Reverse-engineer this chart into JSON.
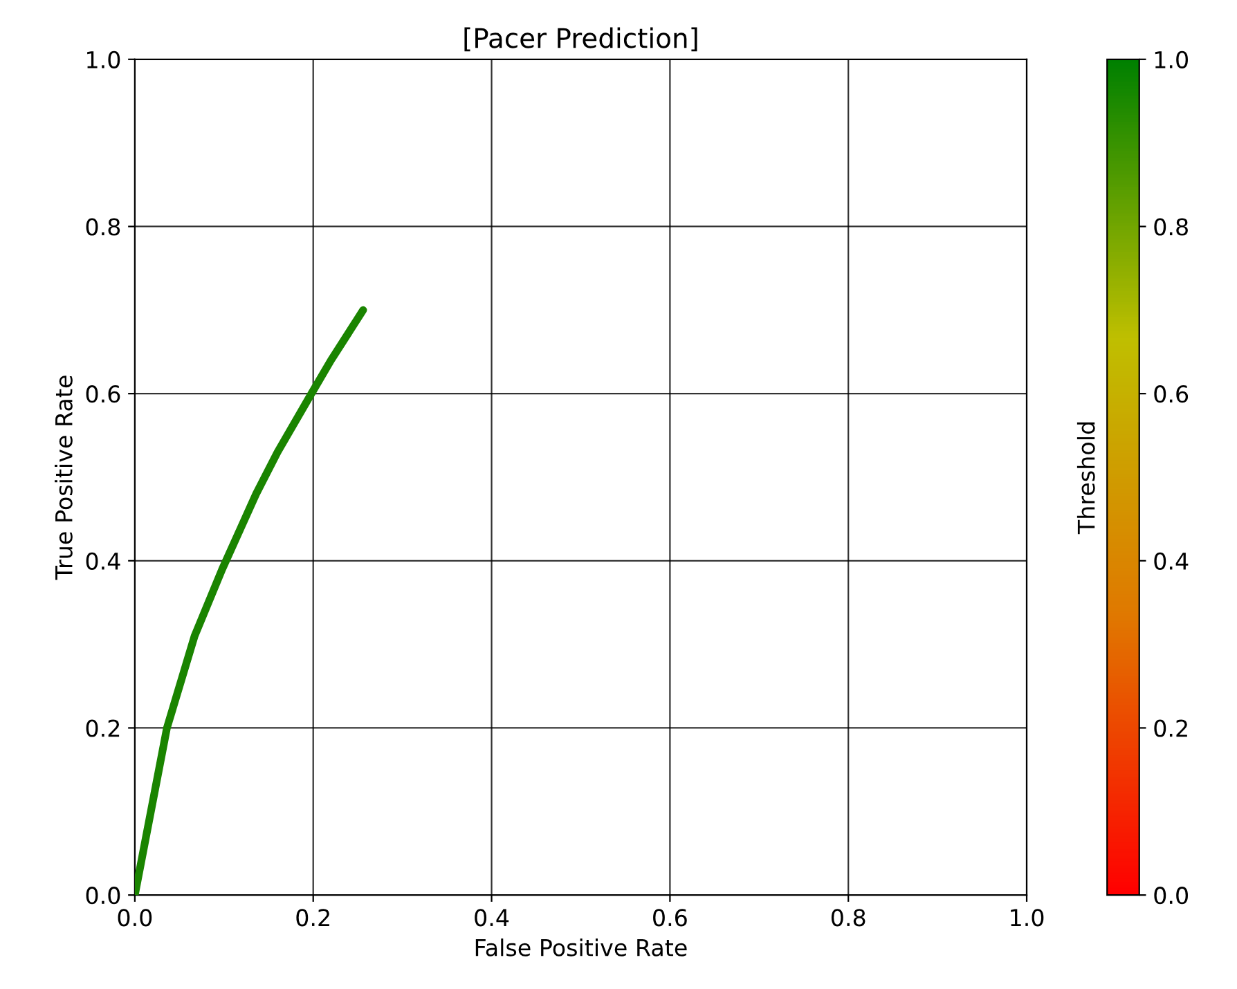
{
  "chart_data": {
    "type": "line",
    "title": "[Pacer Prediction]",
    "xlabel": "False Positive Rate",
    "ylabel": "True Positive Rate",
    "clabel": "Threshold",
    "series": [
      {
        "color": "#1a8400",
        "x": [
          0,
          0.036,
          0.067,
          0.098,
          0.136,
          0.16,
          0.198,
          0.22,
          0.256
        ],
        "values": [
          0,
          0.2,
          0.31,
          0.39,
          0.48,
          0.53,
          0.6,
          0.64,
          0.7
        ]
      }
    ],
    "xlim": [
      0,
      1
    ],
    "ylim": [
      0,
      1
    ],
    "xticks": [
      {
        "value": 0,
        "label": "0.0"
      },
      0.2,
      0.4,
      0.6,
      0.8,
      {
        "value": 1,
        "label": "1.0"
      }
    ],
    "yticks": [
      {
        "value": 0,
        "label": "0.0"
      },
      0.2,
      0.4,
      0.6,
      0.8,
      {
        "value": 1,
        "label": "1.0"
      }
    ],
    "clim": [
      0,
      1
    ],
    "cticks": [
      {
        "value": 0,
        "label": "0.0"
      },
      0.2,
      0.4,
      0.6,
      0.8,
      {
        "value": 1,
        "label": "1.0"
      }
    ],
    "grid": true
  }
}
